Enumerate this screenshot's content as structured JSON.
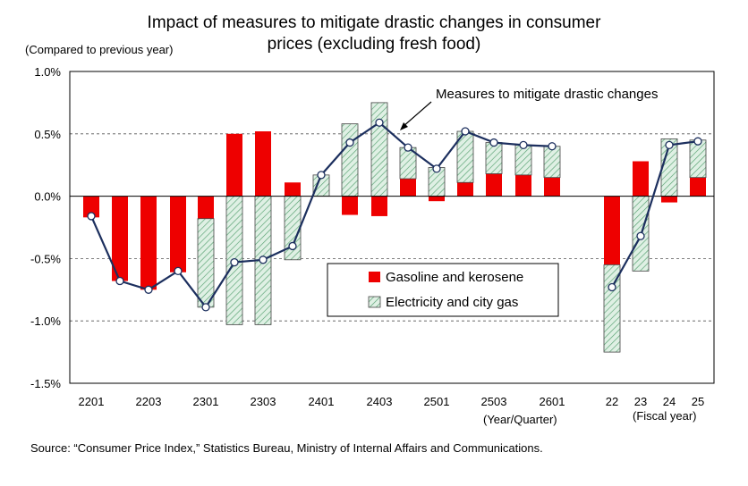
{
  "title_line1": "Impact of measures to mitigate drastic changes in consumer",
  "title_line2": "prices (excluding fresh food)",
  "subtitle": "(Compared to previous year)",
  "source": "Source: “Consumer Price Index,” Statistics Bureau, Ministry of Internal Affairs and Communications.",
  "colors": {
    "gasoline": "#ee0000",
    "electricity_fill": "#dff0e4",
    "electricity_hatch": "#55a070",
    "line": "#1c2f5e"
  },
  "chart_data": {
    "type": "bar",
    "ylim": [
      -1.5,
      1.0
    ],
    "yticks": [
      "1.0%",
      "0.5%",
      "0.0%",
      "-0.5%",
      "-1.0%",
      "-1.5%"
    ],
    "ytick_values": [
      1.0,
      0.5,
      0.0,
      -0.5,
      -1.0,
      -1.5
    ],
    "grid": "horizontal dashed",
    "xlabel_quarter": "(Year/Quarter)",
    "xlabel_fiscal": "(Fiscal year)",
    "annotation": "Measures to mitigate drastic changes",
    "legend_position": "center-right",
    "categories": [
      "2201",
      "2202",
      "2203",
      "2204",
      "2301",
      "2302",
      "2303",
      "2304",
      "2401",
      "2402",
      "2403",
      "2404",
      "2501",
      "2502",
      "2503",
      "2504",
      "2601",
      "22",
      "23",
      "24",
      "25"
    ],
    "tick_labels": [
      "2201",
      "",
      "2203",
      "",
      "2301",
      "",
      "2303",
      "",
      "2401",
      "",
      "2403",
      "",
      "2501",
      "",
      "2503",
      "",
      "2601",
      "22",
      "23",
      "24",
      "25"
    ],
    "series": [
      {
        "name": "Gasoline and kerosene",
        "kind": "bar",
        "values": [
          -0.17,
          -0.68,
          -0.75,
          -0.61,
          -0.18,
          0.5,
          0.52,
          0.11,
          0.0,
          -0.15,
          -0.16,
          0.14,
          -0.04,
          0.11,
          0.18,
          0.17,
          0.15,
          -0.55,
          0.28,
          -0.05,
          0.15
        ]
      },
      {
        "name": "Electricity and city gas",
        "kind": "bar",
        "values": [
          0.0,
          0.0,
          0.0,
          0.0,
          -0.71,
          -1.03,
          -1.03,
          -0.51,
          0.17,
          0.58,
          0.75,
          0.25,
          0.23,
          0.41,
          0.25,
          0.24,
          0.25,
          -0.7,
          -0.6,
          0.46,
          0.3
        ]
      },
      {
        "name": "Measures to mitigate drastic changes",
        "kind": "line",
        "values": [
          -0.16,
          -0.68,
          -0.75,
          -0.6,
          -0.89,
          -0.53,
          -0.51,
          -0.4,
          0.17,
          0.43,
          0.59,
          0.39,
          0.22,
          0.52,
          0.43,
          0.41,
          0.4,
          -0.73,
          -0.32,
          0.41,
          0.44
        ]
      }
    ]
  }
}
